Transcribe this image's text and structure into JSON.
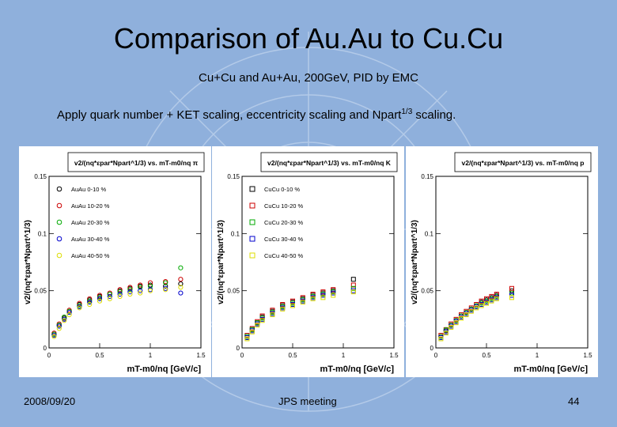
{
  "title": "Comparison of Au.Au to Cu.Cu",
  "subtitle": "Cu+Cu and Au+Au, 200GeV, PID by EMC",
  "note": {
    "text": "Apply quark number + KET scaling, eccentricity scaling and Npart",
    "sup": "1/3",
    "tail": " scaling."
  },
  "footer": {
    "date": "2008/09/20",
    "meeting": "JPS meeting",
    "page": "44"
  },
  "chart_data": [
    {
      "type": "scatter",
      "title": "v2/(nq*εpar*Npart^1/3) vs. mT-m0/nq π",
      "xlabel": "mT-m0/nq [GeV/c]",
      "ylabel": "v2/(nq*εpar*Npart^1/3)",
      "xlim": [
        0,
        1.5
      ],
      "ylim": [
        0,
        0.15
      ],
      "xticks": [
        "0",
        "0.5",
        "1",
        "1.5"
      ],
      "yticks": [
        "0",
        "0.05",
        "0.1",
        "0.15"
      ],
      "legend_position": "top-left",
      "series": [
        {
          "name": "AuAu 0-10 %",
          "color": "#000000",
          "marker": "circle",
          "x": [
            0.05,
            0.1,
            0.15,
            0.2,
            0.3,
            0.4,
            0.5,
            0.6,
            0.7,
            0.8,
            0.9,
            1.0,
            1.15,
            1.3
          ],
          "y": [
            0.012,
            0.02,
            0.026,
            0.032,
            0.038,
            0.042,
            0.045,
            0.047,
            0.05,
            0.052,
            0.054,
            0.055,
            0.054,
            0.056
          ]
        },
        {
          "name": "AuAu 10-20 %",
          "color": "#cc0000",
          "marker": "circle",
          "x": [
            0.05,
            0.1,
            0.15,
            0.2,
            0.3,
            0.4,
            0.5,
            0.6,
            0.7,
            0.8,
            0.9,
            1.0,
            1.15,
            1.3
          ],
          "y": [
            0.013,
            0.021,
            0.027,
            0.033,
            0.039,
            0.043,
            0.046,
            0.048,
            0.051,
            0.053,
            0.055,
            0.057,
            0.058,
            0.06
          ]
        },
        {
          "name": "AuAu 20-30 %",
          "color": "#00aa00",
          "marker": "circle",
          "x": [
            0.05,
            0.1,
            0.15,
            0.2,
            0.3,
            0.4,
            0.5,
            0.6,
            0.7,
            0.8,
            0.9,
            1.0,
            1.15,
            1.3
          ],
          "y": [
            0.012,
            0.02,
            0.027,
            0.032,
            0.037,
            0.041,
            0.044,
            0.047,
            0.049,
            0.051,
            0.053,
            0.054,
            0.057,
            0.07
          ]
        },
        {
          "name": "AuAu 30-40 %",
          "color": "#0000cc",
          "marker": "circle",
          "x": [
            0.05,
            0.1,
            0.15,
            0.2,
            0.3,
            0.4,
            0.5,
            0.6,
            0.7,
            0.8,
            0.9,
            1.0,
            1.15,
            1.3
          ],
          "y": [
            0.011,
            0.019,
            0.025,
            0.031,
            0.036,
            0.04,
            0.043,
            0.045,
            0.047,
            0.049,
            0.05,
            0.051,
            0.052,
            0.048
          ]
        },
        {
          "name": "AuAu 40-50 %",
          "color": "#dddd00",
          "marker": "circle",
          "x": [
            0.05,
            0.1,
            0.15,
            0.2,
            0.3,
            0.4,
            0.5,
            0.6,
            0.7,
            0.8,
            0.9,
            1.0,
            1.15,
            1.3
          ],
          "y": [
            0.01,
            0.017,
            0.024,
            0.029,
            0.035,
            0.038,
            0.041,
            0.043,
            0.045,
            0.047,
            0.048,
            0.05,
            0.051,
            0.053
          ]
        }
      ]
    },
    {
      "type": "scatter",
      "title": "v2/(nq*εpar*Npart^1/3) vs. mT-m0/nq K",
      "xlabel": "mT-m0/nq [GeV/c]",
      "ylabel": "v2/(nq*εpar*Npart^1/3)",
      "xlim": [
        0,
        1.5
      ],
      "ylim": [
        0,
        0.15
      ],
      "xticks": [
        "0",
        "0.5",
        "1",
        "1.5"
      ],
      "yticks": [
        "0",
        "0.05",
        "0.1",
        "0.15"
      ],
      "legend_position": "top-left",
      "series": [
        {
          "name": "CuCu 0-10 %",
          "color": "#000000",
          "marker": "square",
          "x": [
            0.05,
            0.1,
            0.15,
            0.2,
            0.3,
            0.4,
            0.5,
            0.6,
            0.7,
            0.8,
            0.9,
            1.1
          ],
          "y": [
            0.01,
            0.016,
            0.022,
            0.027,
            0.032,
            0.037,
            0.04,
            0.043,
            0.046,
            0.048,
            0.05,
            0.06
          ]
        },
        {
          "name": "CuCu 10-20 %",
          "color": "#cc0000",
          "marker": "square",
          "x": [
            0.05,
            0.1,
            0.15,
            0.2,
            0.3,
            0.4,
            0.5,
            0.6,
            0.7,
            0.8,
            0.9,
            1.1
          ],
          "y": [
            0.011,
            0.017,
            0.023,
            0.028,
            0.033,
            0.038,
            0.041,
            0.044,
            0.047,
            0.049,
            0.051,
            0.055
          ]
        },
        {
          "name": "CuCu 20-30 %",
          "color": "#00aa00",
          "marker": "square",
          "x": [
            0.05,
            0.1,
            0.15,
            0.2,
            0.3,
            0.4,
            0.5,
            0.6,
            0.7,
            0.8,
            0.9,
            1.1
          ],
          "y": [
            0.01,
            0.016,
            0.022,
            0.026,
            0.031,
            0.036,
            0.039,
            0.042,
            0.045,
            0.047,
            0.049,
            0.052
          ]
        },
        {
          "name": "CuCu 30-40 %",
          "color": "#0000cc",
          "marker": "square",
          "x": [
            0.05,
            0.1,
            0.15,
            0.2,
            0.3,
            0.4,
            0.5,
            0.6,
            0.7,
            0.8,
            0.9,
            1.1
          ],
          "y": [
            0.009,
            0.015,
            0.021,
            0.025,
            0.03,
            0.035,
            0.038,
            0.041,
            0.044,
            0.046,
            0.048,
            0.05
          ]
        },
        {
          "name": "CuCu 40-50 %",
          "color": "#dddd00",
          "marker": "square",
          "x": [
            0.05,
            0.1,
            0.15,
            0.2,
            0.3,
            0.4,
            0.5,
            0.6,
            0.7,
            0.8,
            0.9,
            1.1
          ],
          "y": [
            0.008,
            0.014,
            0.02,
            0.024,
            0.029,
            0.034,
            0.037,
            0.04,
            0.043,
            0.044,
            0.046,
            0.049
          ]
        }
      ]
    },
    {
      "type": "scatter",
      "title": "v2/(nq*εpar*Npart^1/3) vs. mT-m0/nq p",
      "xlabel": "mT-m0/nq [GeV/c]",
      "ylabel": "v2/(nq*εpar*Npart^1/3)",
      "xlim": [
        0,
        1.5
      ],
      "ylim": [
        0,
        0.15
      ],
      "xticks": [
        "0",
        "0.5",
        "1",
        "1.5"
      ],
      "yticks": [
        "0",
        "0.05",
        "0.1",
        "0.15"
      ],
      "series": [
        {
          "color": "#000000",
          "marker": "circle",
          "x": [
            0.05,
            0.1,
            0.15,
            0.2,
            0.25,
            0.3,
            0.35,
            0.4,
            0.45,
            0.5,
            0.55,
            0.6,
            0.75
          ],
          "y": [
            0.01,
            0.015,
            0.02,
            0.024,
            0.028,
            0.031,
            0.034,
            0.037,
            0.04,
            0.042,
            0.044,
            0.046,
            0.05
          ]
        },
        {
          "color": "#cc0000",
          "marker": "square",
          "x": [
            0.05,
            0.1,
            0.15,
            0.2,
            0.25,
            0.3,
            0.35,
            0.4,
            0.45,
            0.5,
            0.55,
            0.6,
            0.75
          ],
          "y": [
            0.011,
            0.016,
            0.021,
            0.025,
            0.029,
            0.032,
            0.035,
            0.038,
            0.041,
            0.043,
            0.045,
            0.047,
            0.052
          ]
        },
        {
          "color": "#00aa00",
          "marker": "circle",
          "x": [
            0.05,
            0.1,
            0.15,
            0.2,
            0.25,
            0.3,
            0.35,
            0.4,
            0.45,
            0.5,
            0.55,
            0.6,
            0.75
          ],
          "y": [
            0.01,
            0.016,
            0.02,
            0.024,
            0.028,
            0.031,
            0.034,
            0.037,
            0.039,
            0.041,
            0.043,
            0.045,
            0.048
          ]
        },
        {
          "color": "#0000cc",
          "marker": "square",
          "x": [
            0.05,
            0.1,
            0.15,
            0.2,
            0.25,
            0.3,
            0.35,
            0.4,
            0.45,
            0.5,
            0.55,
            0.6,
            0.75
          ],
          "y": [
            0.009,
            0.014,
            0.019,
            0.023,
            0.027,
            0.03,
            0.033,
            0.036,
            0.038,
            0.04,
            0.042,
            0.044,
            0.046
          ]
        },
        {
          "color": "#dddd00",
          "marker": "square",
          "x": [
            0.05,
            0.1,
            0.15,
            0.2,
            0.25,
            0.3,
            0.35,
            0.4,
            0.45,
            0.5,
            0.55,
            0.6,
            0.75
          ],
          "y": [
            0.008,
            0.013,
            0.018,
            0.022,
            0.026,
            0.029,
            0.032,
            0.035,
            0.037,
            0.039,
            0.041,
            0.043,
            0.044
          ]
        }
      ]
    }
  ]
}
